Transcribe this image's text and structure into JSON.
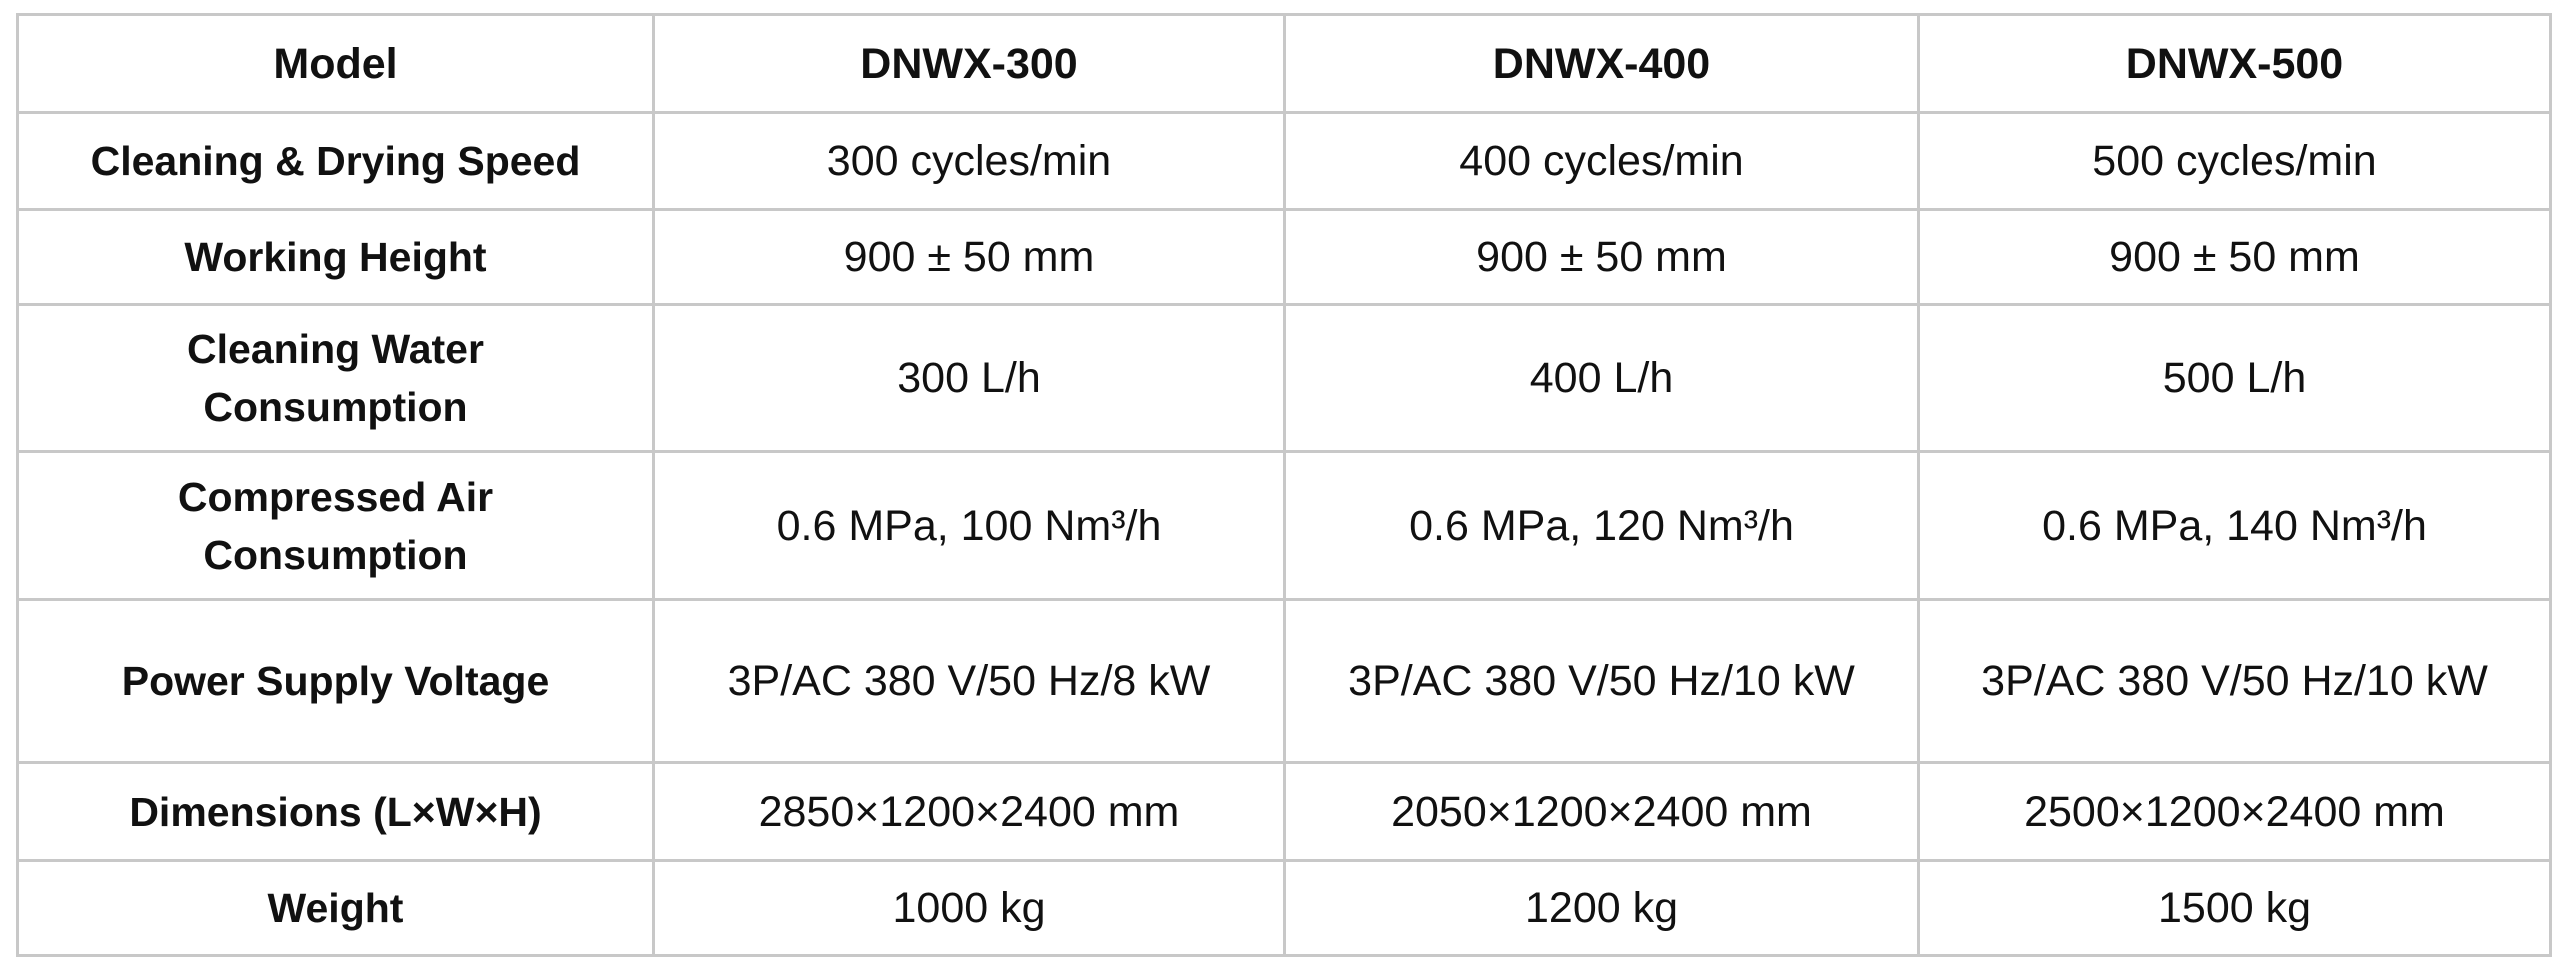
{
  "table": {
    "headers": [
      "Model",
      "DNWX-300",
      "DNWX-400",
      "DNWX-500"
    ],
    "rows": [
      [
        "Cleaning & Drying Speed",
        "300 cycles/min",
        "400 cycles/min",
        "500 cycles/min"
      ],
      [
        "Working Height",
        "900 ± 50 mm",
        "900 ± 50 mm",
        "900 ± 50 mm"
      ],
      [
        "Cleaning Water Consumption",
        "300 L/h",
        "400 L/h",
        "500 L/h"
      ],
      [
        "Compressed Air Consumption",
        "0.6 MPa, 100 Nm³/h",
        "0.6 MPa, 120 Nm³/h",
        "0.6 MPa, 140 Nm³/h"
      ],
      [
        "Power Supply Voltage",
        "3P/AC 380 V/50 Hz/8 kW",
        "3P/AC 380 V/50 Hz/10 kW",
        "3P/AC 380 V/50 Hz/10 kW"
      ],
      [
        "Dimensions (L×W×H)",
        "2850×1200×2400 mm",
        "2050×1200×2400 mm",
        "2500×1200×2400 mm"
      ],
      [
        "Weight",
        "1000 kg",
        "1200 kg",
        "1500 kg"
      ]
    ]
  }
}
